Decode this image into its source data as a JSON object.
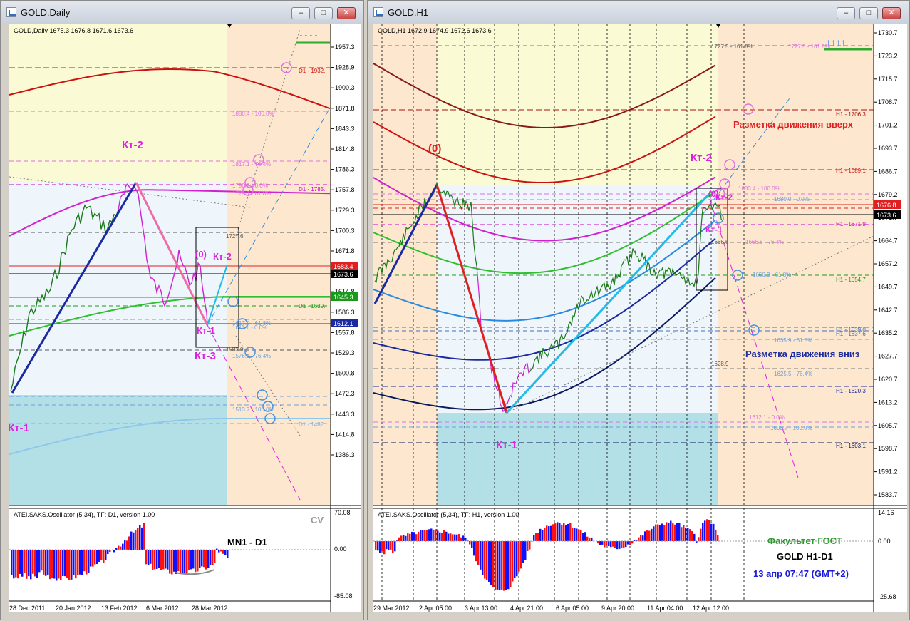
{
  "windows": {
    "daily": {
      "title": "GOLD,Daily",
      "header": "GOLD,Daily  1675.3 1676.8 1671.6 1673.6",
      "price_ticks": [
        "1957.3",
        "1928.9",
        "1900.3",
        "1871.8",
        "1843.3",
        "1814.8",
        "1786.3",
        "1757.8",
        "1729.3",
        "1700.3",
        "1671.8",
        "1643.3",
        "1614.8",
        "1586.3",
        "1557.8",
        "1529.3",
        "1500.8",
        "1472.3",
        "1443.3",
        "1414.8",
        "1386.3"
      ],
      "price_tags": [
        {
          "text": "1683.4",
          "color": "#e02020"
        },
        {
          "text": "1673.6",
          "color": "#000000"
        },
        {
          "text": "1645.3",
          "color": "#1a9a1a"
        },
        {
          "text": "1612.1",
          "color": "#1a2aa0"
        }
      ],
      "level_labels": [
        {
          "text": "D1 - 1932.",
          "color": "#cc1111"
        },
        {
          "text": "1880.4 - 100.0%",
          "color": "#e070e0"
        },
        {
          "text": "1817.1 - 76.4%",
          "color": "#e070e0"
        },
        {
          "text": "1790.0 - 0.0%",
          "color": "#e070e0"
        },
        {
          "text": "1779.1 - 61.8%",
          "color": "#e070e0"
        },
        {
          "text": "D1 - 1785.",
          "color": "#cc00cc"
        },
        {
          "text": "1727.6",
          "color": "#555555"
        },
        {
          "text": "D1 - 1639.",
          "color": "#1a9a1a"
        },
        {
          "text": "1617.0 - 61.8%",
          "color": "#6aa0e0"
        },
        {
          "text": "1611.1 - 0.0%",
          "color": "#6aa0e0"
        },
        {
          "text": "1583.9",
          "color": "#555555"
        },
        {
          "text": "1576.8 - 76.4%",
          "color": "#6aa0e0"
        },
        {
          "text": "1513.7 - 100.0%",
          "color": "#6aa0e0"
        },
        {
          "text": "D1 - 1482.",
          "color": "#80b0e0"
        }
      ],
      "wave_labels": {
        "kt2": "Кт-2",
        "kt1_left": "Кт-1",
        "kt1": "Кт-1",
        "kt3": "Кт-3",
        "zero": "(0)",
        "kt2_small": "Кт-2"
      },
      "osc_header": "ATEI.SAKS.Oscillator (5,34), TF: D1, version 1.00",
      "osc_ticks": [
        "70.08",
        "0.00",
        "-85.08"
      ],
      "osc_note": "MN1 - D1",
      "osc_cv": "CV",
      "dates": [
        "28 Dec 2011",
        "20 Jan 2012",
        "13 Feb 2012",
        "6 Mar 2012",
        "28 Mar 2012"
      ]
    },
    "h1": {
      "title": "GOLD,H1",
      "header": "GOLD,H1  1672.9 1674.9 1672.6 1673.6",
      "price_ticks": [
        "1730.7",
        "1723.2",
        "1715.7",
        "1708.7",
        "1701.2",
        "1693.7",
        "1686.7",
        "1679.2",
        "1671.7",
        "1664.7",
        "1657.2",
        "1649.7",
        "1642.7",
        "1635.2",
        "1627.7",
        "1620.7",
        "1613.2",
        "1605.7",
        "1598.7",
        "1591.2",
        "1583.7"
      ],
      "price_tags": [
        {
          "text": "1676.8",
          "color": "#e02020"
        },
        {
          "text": "1673.6",
          "color": "#000000"
        }
      ],
      "level_labels": [
        {
          "text": "1727.5 - 161.8%",
          "color": "#555555"
        },
        {
          "text": "1727.5 - 161.8%",
          "color": "#e070e0"
        },
        {
          "text": "H1 - 1706.3",
          "color": "#aa1111"
        },
        {
          "text": "H1 - 1689.1",
          "color": "#cc1111"
        },
        {
          "text": "1683.4 - 100.0%",
          "color": "#e070e0"
        },
        {
          "text": "1680.0 - 0.0%",
          "color": "#6aa0e0"
        },
        {
          "text": "H1 - 1671.9",
          "color": "#cc00cc"
        },
        {
          "text": "1666.6",
          "color": "#555555"
        },
        {
          "text": "1666.6 - 76.4%",
          "color": "#e070e0"
        },
        {
          "text": "1656.2 - 61.8%",
          "color": "#6aa0e0"
        },
        {
          "text": "H1 - 1654.7",
          "color": "#1a9a1a"
        },
        {
          "text": "H1 - 1639.0",
          "color": "#4070c0"
        },
        {
          "text": "H1 - 1637.6",
          "color": "#4070c0"
        },
        {
          "text": "1635.9 - 61.8%",
          "color": "#6aa0e0"
        },
        {
          "text": "1628.9",
          "color": "#555555"
        },
        {
          "text": "1625.5 - 76.4%",
          "color": "#6aa0e0"
        },
        {
          "text": "H1 - 1620.3",
          "color": "#1a2aa0"
        },
        {
          "text": "1612.1 - 0.0%",
          "color": "#e070e0"
        },
        {
          "text": "1608.7 - 100.0%",
          "color": "#6aa0e0"
        },
        {
          "text": "H1 - 1603.1",
          "color": "#0a1a60"
        }
      ],
      "wave_labels": {
        "zero": "(0)",
        "kt2": "Кт-2",
        "kt1": "Кт-1",
        "kt1_small": "Кт-1",
        "zero_small": "(0)",
        "kt2_small": "Кт-2"
      },
      "annotations": {
        "up": "Разметка движения вверх",
        "down": "Разметка движения вниз"
      },
      "osc_header": "ATEI.SAKS.Oscillator (5,34), TF: H1, version 1.00",
      "osc_ticks": [
        "14.16",
        "0.00",
        "-25.68"
      ],
      "info": {
        "faculty": "Факультет ГОСТ",
        "pair": "GOLD   H1-D1",
        "time": "13 апр 07:47  (GMT+2)"
      },
      "dates": [
        "29 Mar 2012",
        "2 Apr 05:00",
        "3 Apr 13:00",
        "4 Apr 21:00",
        "6 Apr 05:00",
        "9 Apr 20:00",
        "11 Apr 04:00",
        "12 Apr 12:00"
      ]
    }
  },
  "colors": {
    "wave_up": "#1a2aa0",
    "wave_down": "#e02020",
    "ema_green": "#2ec02e",
    "ema_magenta": "#d020d0",
    "bars_up": "#1a7a1a",
    "bars_down": "#d020d0",
    "osc_red": "#ff1010",
    "osc_blue": "#1010ff"
  }
}
